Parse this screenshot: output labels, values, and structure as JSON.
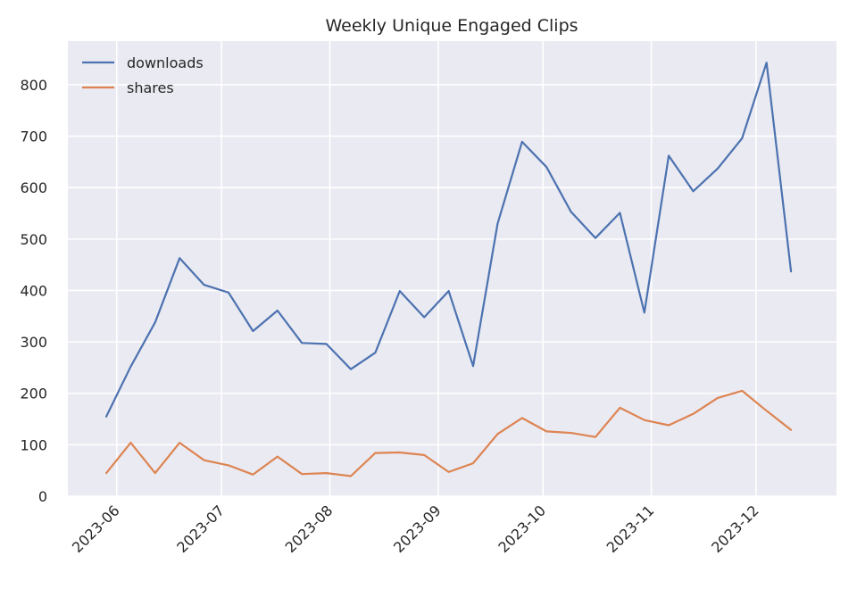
{
  "chart_data": {
    "type": "line",
    "title": "Weekly Unique Engaged Clips",
    "xlabel": "",
    "ylabel": "",
    "x": [
      "2023-05-29",
      "2023-06-05",
      "2023-06-12",
      "2023-06-19",
      "2023-06-26",
      "2023-07-03",
      "2023-07-10",
      "2023-07-17",
      "2023-07-24",
      "2023-07-31",
      "2023-08-07",
      "2023-08-14",
      "2023-08-21",
      "2023-08-28",
      "2023-09-04",
      "2023-09-11",
      "2023-09-18",
      "2023-09-25",
      "2023-10-02",
      "2023-10-09",
      "2023-10-16",
      "2023-10-23",
      "2023-10-30",
      "2023-11-06",
      "2023-11-13",
      "2023-11-20",
      "2023-11-27",
      "2023-12-04",
      "2023-12-11"
    ],
    "series": [
      {
        "name": "downloads",
        "color": "#4c72b0",
        "values": [
          155,
          252,
          338,
          463,
          411,
          396,
          321,
          361,
          298,
          296,
          247,
          279,
          399,
          348,
          399,
          253,
          530,
          689,
          640,
          553,
          502,
          551,
          357,
          662,
          593,
          637,
          696,
          843,
          437
        ]
      },
      {
        "name": "shares",
        "color": "#dd8452",
        "values": [
          45,
          104,
          45,
          104,
          70,
          60,
          42,
          77,
          43,
          45,
          39,
          84,
          85,
          80,
          47,
          64,
          121,
          152,
          126,
          123,
          115,
          172,
          148,
          138,
          160,
          191,
          205,
          166,
          129
        ]
      }
    ],
    "x_ticks": [
      "2023-06",
      "2023-07",
      "2023-08",
      "2023-09",
      "2023-10",
      "2023-11",
      "2023-12"
    ],
    "x_tick_dates": [
      "2023-06-01",
      "2023-07-01",
      "2023-08-01",
      "2023-09-01",
      "2023-10-01",
      "2023-11-01",
      "2023-12-01"
    ],
    "y_ticks": [
      0,
      100,
      200,
      300,
      400,
      500,
      600,
      700,
      800
    ],
    "xlim": [
      "2023-05-18",
      "2023-12-24"
    ],
    "ylim": [
      0,
      885
    ],
    "grid": true,
    "legend_position": "top-left",
    "colors": {
      "background": "#eaeaf2",
      "grid": "#ffffff",
      "text": "#262626"
    }
  }
}
